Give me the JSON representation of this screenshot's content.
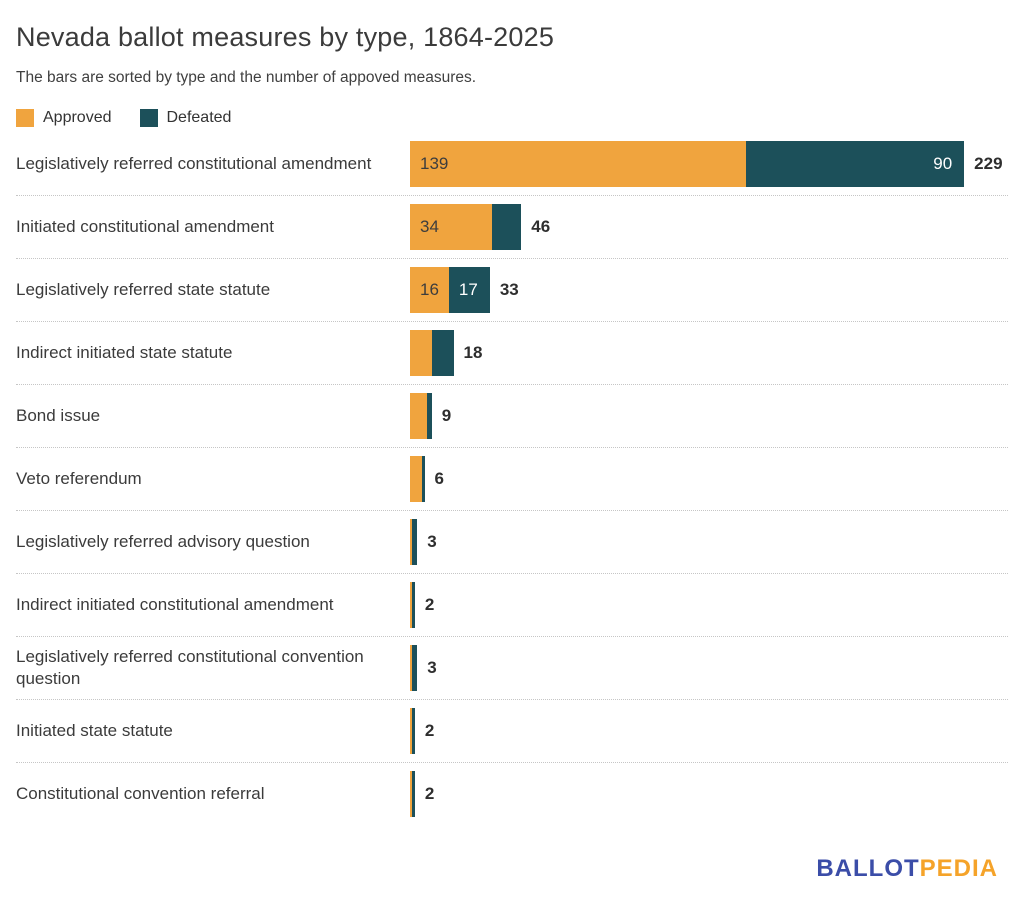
{
  "header": {
    "title": "Nevada ballot measures by type, 1864-2025",
    "subtitle": "The bars are sorted by type and the number of appoved measures."
  },
  "legend": {
    "items": [
      {
        "label": "Approved",
        "color": "#f0a43e"
      },
      {
        "label": "Defeated",
        "color": "#1c505a"
      }
    ]
  },
  "colors": {
    "approved": "#f0a43e",
    "defeated": "#1c505a",
    "approved_label_text": "#3d3d3d",
    "defeated_label_text": "#ffffff",
    "separator": "#c6c6c6",
    "logo_blue": "#3b4da8",
    "logo_orange": "#f5a329"
  },
  "chart_data": {
    "type": "bar",
    "orientation": "horizontal",
    "stacked": true,
    "title": "Nevada ballot measures by type, 1864-2025",
    "xlabel": "",
    "ylabel": "",
    "xlim": [
      0,
      237
    ],
    "grid": false,
    "legend_position": "top",
    "categories": [
      "Legislatively referred constitutional amendment",
      "Initiated constitutional amendment",
      "Legislatively referred state statute",
      "Indirect initiated state statute",
      "Bond issue",
      "Veto referendum",
      "Legislatively referred advisory question",
      "Indirect initiated constitutional amendment",
      "Legislatively referred constitutional convention question",
      "Initiated state statute",
      "Constitutional convention referral"
    ],
    "series": [
      {
        "name": "Approved",
        "color": "#f0a43e",
        "values": [
          139,
          34,
          16,
          9,
          7,
          5,
          1,
          1,
          1,
          1,
          1
        ]
      },
      {
        "name": "Defeated",
        "color": "#1c505a",
        "values": [
          90,
          12,
          17,
          9,
          2,
          1,
          2,
          1,
          2,
          1,
          1
        ]
      }
    ],
    "totals": [
      229,
      46,
      33,
      18,
      9,
      6,
      3,
      2,
      3,
      2,
      2
    ],
    "value_labels_shown_inside_bars": {
      "Legislatively referred constitutional amendment": [
        "139",
        "90"
      ],
      "Initiated constitutional amendment": [
        "34",
        ""
      ],
      "Legislatively referred state statute": [
        "16",
        "17"
      ]
    }
  },
  "footer": {
    "logo_part1": "BALLOT",
    "logo_part2": "PEDIA"
  }
}
